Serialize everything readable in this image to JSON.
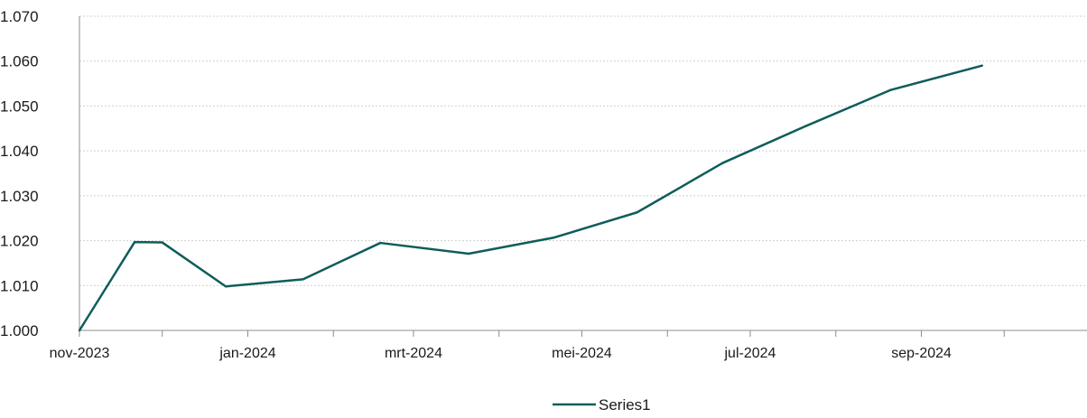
{
  "chart_data": {
    "type": "line",
    "title": "",
    "xlabel": "",
    "ylabel": "",
    "x": [
      "2023-11-01",
      "2023-11-21",
      "2023-12-01",
      "2023-12-24",
      "2024-01-21",
      "2024-02-18",
      "2024-03-21",
      "2024-04-21",
      "2024-05-21",
      "2024-06-21",
      "2024-07-21",
      "2024-08-21",
      "2024-09-23"
    ],
    "series": [
      {
        "name": "Series1",
        "color": "#0e5d5a",
        "values": [
          1.0,
          1.0197,
          1.0196,
          1.0098,
          1.0114,
          1.0195,
          1.0171,
          1.0207,
          1.0263,
          1.0373,
          1.0455,
          1.0536,
          1.059
        ]
      }
    ],
    "ylim": [
      1.0,
      1.07
    ],
    "y_ticks": [
      1.0,
      1.01,
      1.02,
      1.03,
      1.04,
      1.05,
      1.06,
      1.07
    ],
    "y_tick_labels": [
      "1.000",
      "1.010",
      "1.020",
      "1.030",
      "1.040",
      "1.050",
      "1.060",
      "1.070"
    ],
    "xlim": [
      "2023-11-01",
      "2024-10-31"
    ],
    "x_tick_dates": [
      "2023-11-01",
      "2023-12-01",
      "2024-01-01",
      "2024-02-01",
      "2024-03-01",
      "2024-04-01",
      "2024-05-01",
      "2024-06-01",
      "2024-07-01",
      "2024-08-01",
      "2024-09-01",
      "2024-10-01"
    ],
    "x_tick_labels": [
      "nov-2023",
      "",
      "jan-2024",
      "",
      "mrt-2024",
      "",
      "mei-2024",
      "",
      "jul-2024",
      "",
      "sep-2024",
      ""
    ],
    "grid": "horizontal",
    "legend": "bottom",
    "colors": {
      "line": "#0e5d5a",
      "grid": "#d0d0d0",
      "axis": "#8c8c8c"
    }
  }
}
